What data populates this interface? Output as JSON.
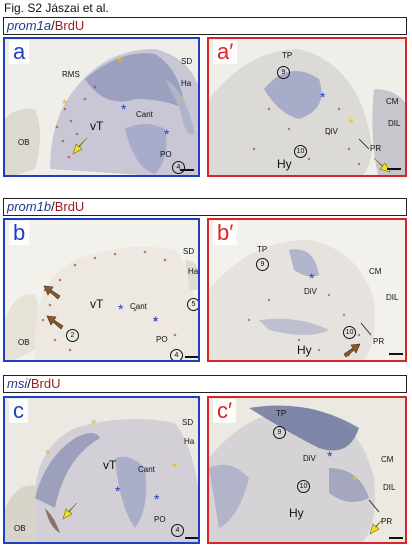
{
  "figure_title": "Fig. S2 Jászai et al.",
  "rows": [
    {
      "marker": "prom1a",
      "sep": "/",
      "stain": "BrdU"
    },
    {
      "marker": "prom1b",
      "sep": "/",
      "stain": "BrdU"
    },
    {
      "marker": "msi",
      "sep": "/",
      "stain": "BrdU"
    }
  ],
  "panels": {
    "a": {
      "letter": "a",
      "labels": {
        "rms": "RMS",
        "sd": "SD",
        "ha": "Ha",
        "ob": "OB",
        "vt": "vT",
        "cant": "Cant",
        "po": "PO",
        "n4": "4"
      }
    },
    "a2": {
      "letter": "a′",
      "labels": {
        "tp": "TP",
        "n9": "9",
        "cm": "CM",
        "dil": "DIL",
        "div": "DiV",
        "hy": "Hy",
        "n10": "10",
        "pr": "PR"
      }
    },
    "b": {
      "letter": "b",
      "labels": {
        "sd": "SD",
        "ha": "Ha",
        "vt": "vT",
        "cant": "Cant",
        "n2": "2",
        "n5": "5",
        "ob": "OB",
        "po": "PO",
        "n4": "4"
      }
    },
    "b2": {
      "letter": "b′",
      "labels": {
        "tp": "TP",
        "n9": "9",
        "div": "DiV",
        "cm": "CM",
        "dil": "DIL",
        "n10": "10",
        "hy": "Hy",
        "pr": "PR"
      }
    },
    "c": {
      "letter": "c",
      "labels": {
        "sd": "SD",
        "ha": "Ha",
        "vt": "vT",
        "cant": "Cant",
        "ob": "OB",
        "po": "PO",
        "n4": "4"
      }
    },
    "c2": {
      "letter": "c′",
      "labels": {
        "tp": "TP",
        "n9": "9",
        "div": "DiV",
        "cm": "CM",
        "dil": "DIL",
        "n10": "10",
        "hy": "Hy",
        "pr": "PR"
      }
    }
  },
  "colors": {
    "blue_frame": "#1f3fbf",
    "red_frame": "#d9252a",
    "yellow_marker": "#e8c21a",
    "brown_arrow": "#8a5a2b"
  }
}
